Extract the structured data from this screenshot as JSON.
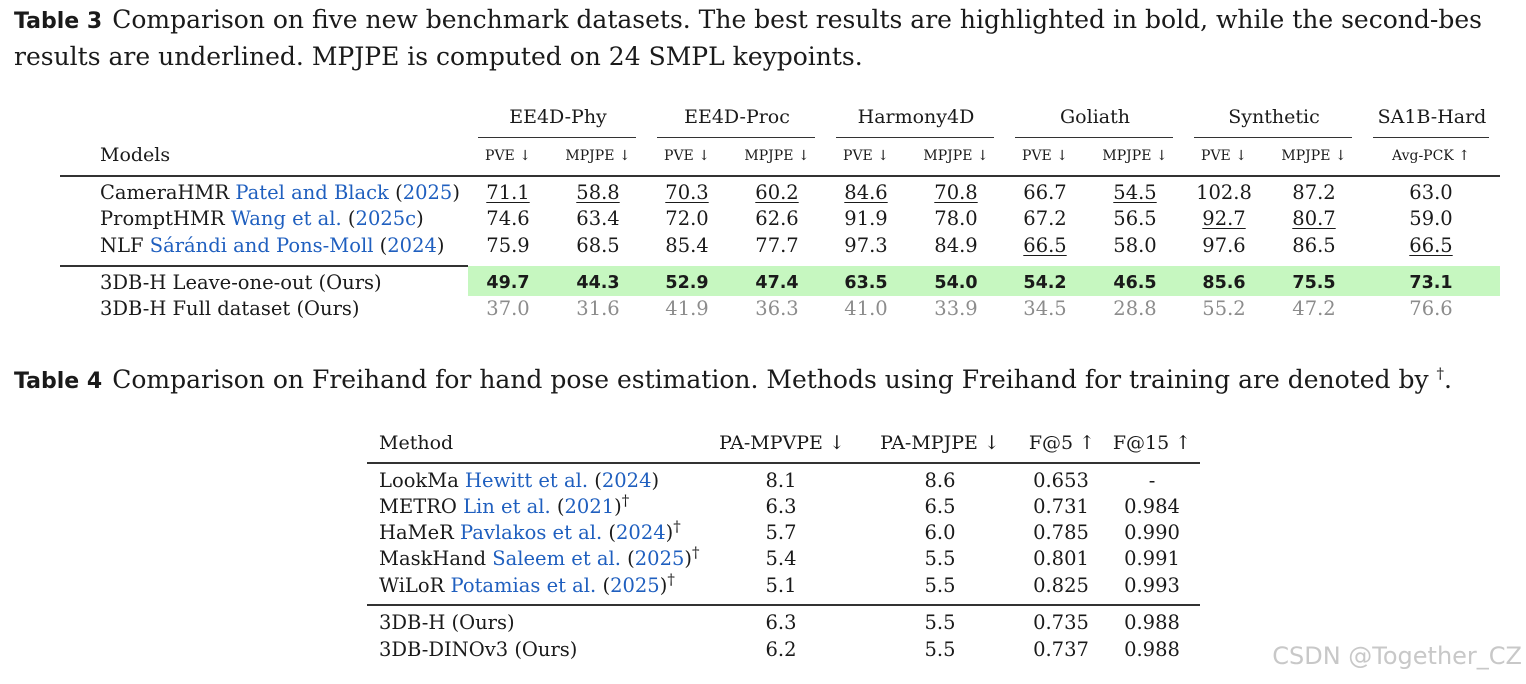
{
  "table3": {
    "caption_label": "Table 3",
    "caption_line1": "Comparison on five new benchmark datasets. The best results are highlighted in bold, while the second-bes",
    "caption_line2": "results are underlined. MPJPE is computed on 24 SMPL keypoints.",
    "models_header": "Models",
    "groups": [
      "EE4D-Phy",
      "EE4D-Proc",
      "Harmony4D",
      "Goliath",
      "Synthetic",
      "SA1B-Hard"
    ],
    "subheaders": [
      "PVE ↓",
      "MPJPE ↓",
      "PVE ↓",
      "MPJPE ↓",
      "PVE ↓",
      "MPJPE ↓",
      "PVE ↓",
      "MPJPE ↓",
      "PVE ↓",
      "MPJPE ↓",
      "Avg-PCK ↑"
    ],
    "rows": [
      {
        "name": "CameraHMR",
        "cite": "Patel and Black",
        "year_open": " (",
        "year": "2025",
        "year_close": ")",
        "values": [
          "71.1",
          "58.8",
          "70.3",
          "60.2",
          "84.6",
          "70.8",
          "66.7",
          "54.5",
          "102.8",
          "87.2",
          "63.0"
        ]
      },
      {
        "name": "PromptHMR",
        "cite": "Wang et al.",
        "year_open": " (",
        "year": "2025c",
        "year_close": ")",
        "values": [
          "74.6",
          "63.4",
          "72.0",
          "62.6",
          "91.9",
          "78.0",
          "67.2",
          "56.5",
          "92.7",
          "80.7",
          "59.0"
        ]
      },
      {
        "name": "NLF",
        "cite": "Sárándi and Pons-Moll",
        "year_open": " (",
        "year": "2024",
        "year_close": ")",
        "values": [
          "75.9",
          "68.5",
          "85.4",
          "77.7",
          "97.3",
          "84.9",
          "66.5",
          "58.0",
          "97.6",
          "86.5",
          "66.5"
        ]
      },
      {
        "name": "3DB-H Leave-one-out (Ours)",
        "values": [
          "49.7",
          "44.3",
          "52.9",
          "47.4",
          "63.5",
          "54.0",
          "54.2",
          "46.5",
          "85.6",
          "75.5",
          "73.1"
        ]
      },
      {
        "name": "3DB-H Full dataset (Ours)",
        "values": [
          "37.0",
          "31.6",
          "41.9",
          "36.3",
          "41.0",
          "33.9",
          "34.5",
          "28.8",
          "55.2",
          "47.2",
          "76.6"
        ]
      }
    ],
    "underlined": [
      [
        0,
        0
      ],
      [
        0,
        1
      ],
      [
        0,
        2
      ],
      [
        0,
        3
      ],
      [
        0,
        4
      ],
      [
        0,
        5
      ],
      [
        0,
        7
      ],
      [
        1,
        8
      ],
      [
        1,
        9
      ],
      [
        2,
        6
      ],
      [
        2,
        10
      ]
    ],
    "highlight_color": "#c6f7c0",
    "gray_color": "#8c8c8c"
  },
  "table4": {
    "caption_label": "Table 4",
    "caption_text": "Comparison on Freihand for hand pose estimation. Methods using Freihand for training are denoted by ",
    "caption_dagger": "†",
    "caption_end": ".",
    "headers": [
      "Method",
      "PA-MPVPE ↓",
      "PA-MPJPE ↓",
      "F@5 ↑",
      "F@15 ↑"
    ],
    "rows": [
      {
        "name": "LookMa",
        "cite": "Hewitt et al.",
        "year": "2024",
        "dagger": "",
        "values": [
          "8.1",
          "8.6",
          "0.653",
          "-"
        ]
      },
      {
        "name": "METRO",
        "cite": "Lin et al.",
        "year": "2021",
        "dagger": "†",
        "values": [
          "6.3",
          "6.5",
          "0.731",
          "0.984"
        ]
      },
      {
        "name": "HaMeR",
        "cite": "Pavlakos et al.",
        "year": "2024",
        "dagger": "†",
        "values": [
          "5.7",
          "6.0",
          "0.785",
          "0.990"
        ]
      },
      {
        "name": "MaskHand",
        "cite": "Saleem et al.",
        "year": "2025",
        "dagger": "†",
        "values": [
          "5.4",
          "5.5",
          "0.801",
          "0.991"
        ]
      },
      {
        "name": "WiLoR",
        "cite": "Potamias et al.",
        "year": "2025",
        "dagger": "†",
        "values": [
          "5.1",
          "5.5",
          "0.825",
          "0.993"
        ]
      },
      {
        "name": "3DB-H (Ours)",
        "values": [
          "6.3",
          "5.5",
          "0.735",
          "0.988"
        ]
      },
      {
        "name": "3DB-DINOv3 (Ours)",
        "values": [
          "6.2",
          "5.5",
          "0.737",
          "0.988"
        ]
      }
    ]
  },
  "watermark": "CSDN @Together_CZ",
  "citation_color": "#1f5fbf"
}
